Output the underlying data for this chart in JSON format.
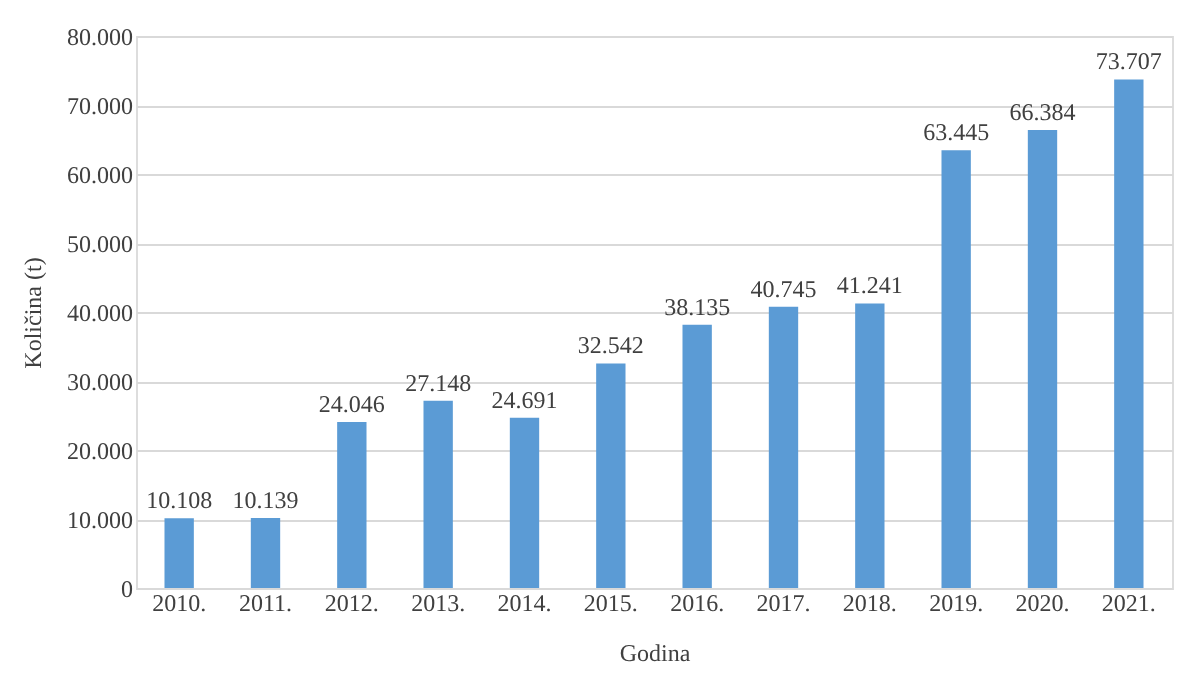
{
  "chart_data": {
    "type": "bar",
    "xlabel": "Godina",
    "ylabel": "Količina (t)",
    "categories": [
      "2010.",
      "2011.",
      "2012.",
      "2013.",
      "2014.",
      "2015.",
      "2016.",
      "2017.",
      "2018.",
      "2019.",
      "2020.",
      "2021."
    ],
    "values": [
      10108,
      10139,
      24046,
      27148,
      24691,
      32542,
      38135,
      40745,
      41241,
      63445,
      66384,
      73707
    ],
    "value_labels": [
      "10.108",
      "10.139",
      "24.046",
      "27.148",
      "24.691",
      "32.542",
      "38.135",
      "40.745",
      "41.241",
      "63.445",
      "66.384",
      "73.707"
    ],
    "color": "#5b9bd5",
    "ylim": [
      0,
      80000
    ],
    "yticks": [
      0,
      {
        "value": 10000,
        "label": "10.000"
      },
      {
        "value": 20000,
        "label": "20.000"
      },
      {
        "value": 30000,
        "label": "30.000"
      },
      {
        "value": 40000,
        "label": "40.000"
      },
      {
        "value": 50000,
        "label": "50.000"
      },
      {
        "value": 60000,
        "label": "60.000"
      },
      {
        "value": 70000,
        "label": "70.000"
      },
      {
        "value": 80000,
        "label": "80.000"
      }
    ],
    "grid": "y"
  }
}
